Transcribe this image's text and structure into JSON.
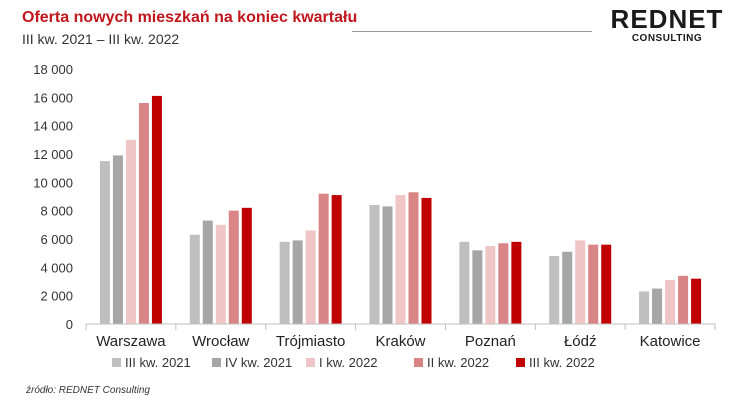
{
  "header": {
    "title": "Oferta nowych mieszkań na koniec kwartału",
    "subtitle": "III kw. 2021 – III kw. 2022"
  },
  "logo": {
    "main": "REDNET",
    "sub": "CONSULTING"
  },
  "source": "źródło: REDNET Consulting",
  "chart_data": {
    "type": "bar",
    "title": "Oferta nowych mieszkań na koniec kwartału",
    "subtitle": "III kw. 2021 – III kw. 2022",
    "categories": [
      "Warszawa",
      "Wrocław",
      "Trójmiasto",
      "Kraków",
      "Poznań",
      "Łódź",
      "Katowice"
    ],
    "ylim": [
      0,
      18000
    ],
    "yticks": [
      0,
      2000,
      4000,
      6000,
      8000,
      10000,
      12000,
      14000,
      16000,
      18000
    ],
    "ytick_labels": [
      "0",
      "2 000",
      "4 000",
      "6 000",
      "8 000",
      "10 000",
      "12 000",
      "14 000",
      "16 000",
      "18 000"
    ],
    "grid": false,
    "legend_position": "bottom",
    "series": [
      {
        "name": "III kw. 2021",
        "color": "#bfbfbf",
        "values": [
          11500,
          6300,
          5800,
          8400,
          5800,
          4800,
          2300
        ]
      },
      {
        "name": "IV kw. 2021",
        "color": "#a6a6a6",
        "values": [
          11900,
          7300,
          5900,
          8300,
          5200,
          5100,
          2500
        ]
      },
      {
        "name": "I kw. 2022",
        "color": "#f0c5c5",
        "values": [
          13000,
          7000,
          6600,
          9100,
          5500,
          5900,
          3100
        ]
      },
      {
        "name": "II kw. 2022",
        "color": "#d98585",
        "values": [
          15600,
          8000,
          9200,
          9300,
          5700,
          5600,
          3400
        ]
      },
      {
        "name": "III kw. 2022",
        "color": "#c00000",
        "values": [
          16100,
          8200,
          9100,
          8900,
          5800,
          5600,
          3200
        ]
      }
    ]
  }
}
